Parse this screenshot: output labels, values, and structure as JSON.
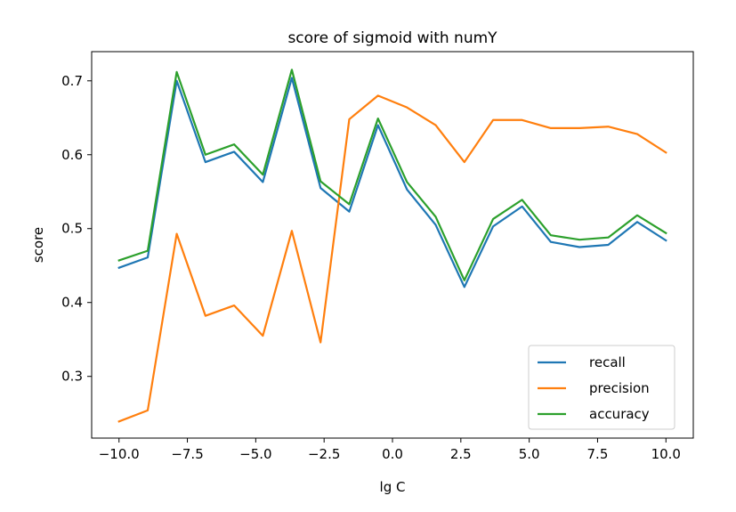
{
  "chart_data": {
    "type": "line",
    "title": "score of sigmoid with numY",
    "xlabel": "lg C",
    "ylabel": "score",
    "xlim": [
      -11.0,
      11.0
    ],
    "ylim": [
      0.2165,
      0.7395
    ],
    "xticks": [
      -10.0,
      -7.5,
      -5.0,
      -2.5,
      0.0,
      2.5,
      5.0,
      7.5,
      10.0
    ],
    "xtick_labels": [
      "−10.0",
      "−7.5",
      "−5.0",
      "−2.5",
      "0.0",
      "2.5",
      "5.0",
      "7.5",
      "10.0"
    ],
    "yticks": [
      0.3,
      0.4,
      0.5,
      0.6,
      0.7
    ],
    "ytick_labels": [
      "0.3",
      "0.4",
      "0.5",
      "0.6",
      "0.7"
    ],
    "grid": false,
    "legend_position": "lower-right",
    "x": [
      -10.0,
      -8.95,
      -7.89,
      -6.84,
      -5.79,
      -4.74,
      -3.68,
      -2.63,
      -1.58,
      -0.53,
      0.53,
      1.58,
      2.63,
      3.68,
      4.74,
      5.79,
      6.84,
      7.89,
      8.95,
      10.0
    ],
    "series": [
      {
        "name": "recall",
        "color": "#1f77b4",
        "values": [
          0.447,
          0.461,
          0.7,
          0.59,
          0.604,
          0.563,
          0.704,
          0.555,
          0.523,
          0.64,
          0.553,
          0.505,
          0.421,
          0.503,
          0.53,
          0.482,
          0.475,
          0.478,
          0.509,
          0.484
        ]
      },
      {
        "name": "precision",
        "color": "#ff7f0e",
        "values": [
          0.239,
          0.254,
          0.493,
          0.382,
          0.396,
          0.355,
          0.497,
          0.346,
          0.648,
          0.68,
          0.664,
          0.64,
          0.59,
          0.647,
          0.647,
          0.636,
          0.636,
          0.638,
          0.628,
          0.603
        ]
      },
      {
        "name": "accuracy",
        "color": "#2ca02c",
        "values": [
          0.457,
          0.47,
          0.712,
          0.6,
          0.614,
          0.573,
          0.715,
          0.564,
          0.533,
          0.649,
          0.563,
          0.516,
          0.43,
          0.513,
          0.539,
          0.491,
          0.485,
          0.488,
          0.518,
          0.494
        ]
      }
    ]
  }
}
